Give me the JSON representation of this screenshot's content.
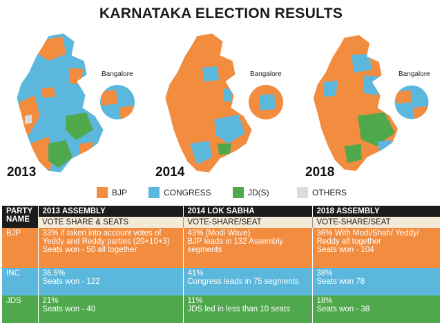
{
  "title": "KARNATAKA ELECTION RESULTS",
  "colors": {
    "bjp": "#f28c3f",
    "congress": "#5bb8dc",
    "jds": "#4fa84c",
    "others": "#dcdcdc"
  },
  "maps": [
    {
      "year": "2013",
      "label": "Bangalore"
    },
    {
      "year": "2014",
      "label": "Bangalore"
    },
    {
      "year": "2018",
      "label": "Bangalore"
    }
  ],
  "legend": [
    {
      "label": "BJP",
      "color": "#f28c3f"
    },
    {
      "label": "CONGRESS",
      "color": "#5bb8dc"
    },
    {
      "label": "JD(S)",
      "color": "#4fa84c"
    },
    {
      "label": "OTHERS",
      "color": "#dcdcdc"
    }
  ],
  "table": {
    "party_header_1": "PARTY",
    "party_header_2": "NAME",
    "columns": [
      "2013 ASSEMBLY",
      "2014 LOK SABHA",
      "2018 ASSEMBLY"
    ],
    "subheaders": [
      "VOTE SHARE & SEATS",
      "VOTE-SHARE/SEAT",
      "VOTE-SHARE/SEAT"
    ],
    "rows": [
      {
        "party": "BJP",
        "cells": [
          [
            "33% if taken into account votes of",
            "Yeddy and Reddy parties (20+10+3)",
            "Seats won - 50 all together"
          ],
          [
            "43% (Modi Wave)",
            "BJP leads in 132 Assembly",
            "segments"
          ],
          [
            "36% With Modi/Shah/ Yeddy/",
            "Reddy all together",
            "Seats won - 104"
          ]
        ]
      },
      {
        "party": "INC",
        "cells": [
          [
            "36.5%",
            "Seats won - 122"
          ],
          [
            "41%",
            "Congress leads in 75 segments"
          ],
          [
            "38%",
            "Seats won 78"
          ]
        ]
      },
      {
        "party": "JDS",
        "cells": [
          [
            "21%",
            "Seats won - 40"
          ],
          [
            "11%",
            "JDS led in less than 10 seats"
          ],
          [
            "18%",
            "Seats won - 38"
          ]
        ]
      }
    ]
  }
}
